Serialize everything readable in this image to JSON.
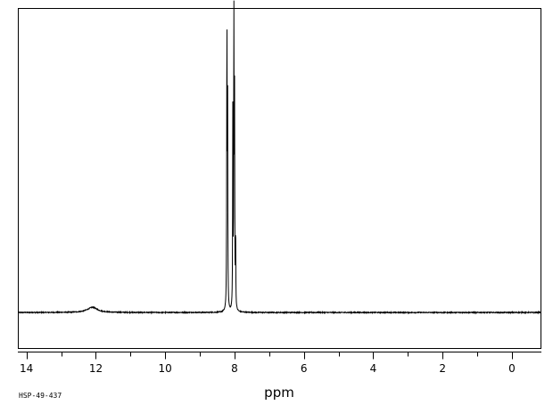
{
  "chart_data": {
    "type": "line",
    "title": "",
    "xlabel": "ppm",
    "ylabel": "",
    "xlim": [
      14.25,
      -0.85
    ],
    "ylim": [
      -0.12,
      1.0
    ],
    "x_reversed": true,
    "grid": false,
    "legend": "none",
    "major_ticks": [
      14,
      12,
      10,
      8,
      6,
      4,
      2,
      0
    ],
    "tick_labels": [
      "14",
      "12",
      "10",
      "8",
      "6",
      "4",
      "2",
      "0"
    ],
    "minor_tick_step": 1,
    "sample_id": "HSP-49-437",
    "line_color": "#000000",
    "series": [
      {
        "peaks": [
          {
            "ppm": 12.1,
            "height": 0.017,
            "width": 0.35
          },
          {
            "ppm": 8.22,
            "height": 0.95,
            "width": 0.014
          },
          {
            "ppm": 8.2,
            "height": 0.7,
            "width": 0.012
          },
          {
            "ppm": 8.05,
            "height": 0.65,
            "width": 0.012
          },
          {
            "ppm": 8.02,
            "height": 1.0,
            "width": 0.012
          },
          {
            "ppm": 8.0,
            "height": 0.7,
            "width": 0.012
          },
          {
            "ppm": 7.97,
            "height": 0.26,
            "width": 0.012
          }
        ]
      }
    ]
  }
}
